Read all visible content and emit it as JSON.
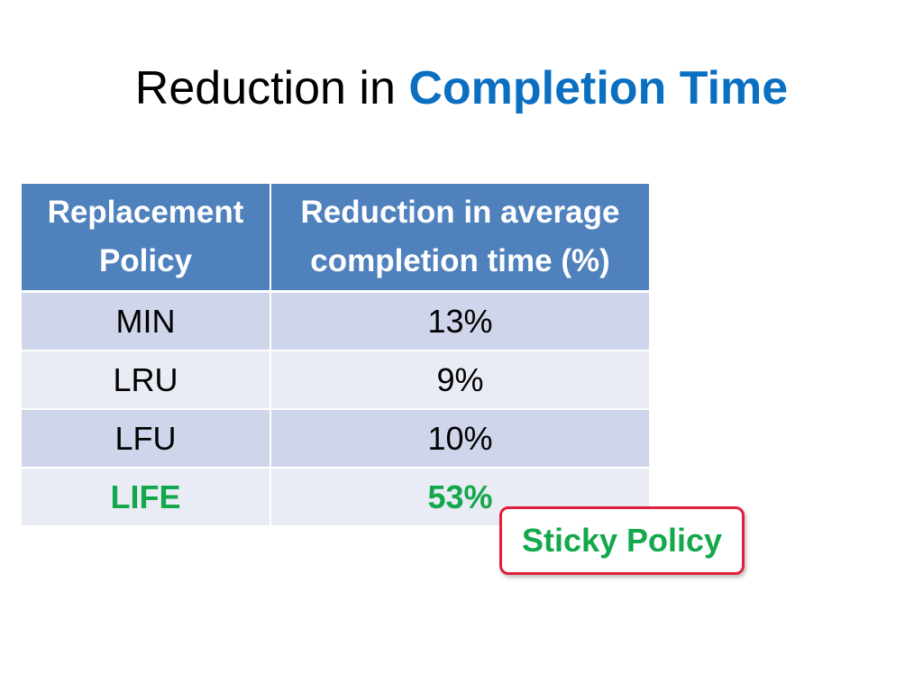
{
  "slide": {
    "title_plain": "Reduction in ",
    "title_accent": "Completion Time"
  },
  "table": {
    "headers": [
      [
        "Replacement",
        "Policy"
      ],
      [
        "Reduction in average",
        "completion time (%)"
      ]
    ],
    "rows": [
      {
        "policy": "MIN",
        "reduction": "13%"
      },
      {
        "policy": "LRU",
        "reduction": "9%"
      },
      {
        "policy": "LFU",
        "reduction": "10%"
      },
      {
        "policy": "LIFE",
        "reduction": "53%"
      }
    ]
  },
  "callout": {
    "label": "Sticky Policy"
  },
  "colors": {
    "title_accent": "#0b6fc1",
    "header_bg": "#4f81bd",
    "highlight": "#12a84b",
    "callout_border": "#e0203a"
  }
}
